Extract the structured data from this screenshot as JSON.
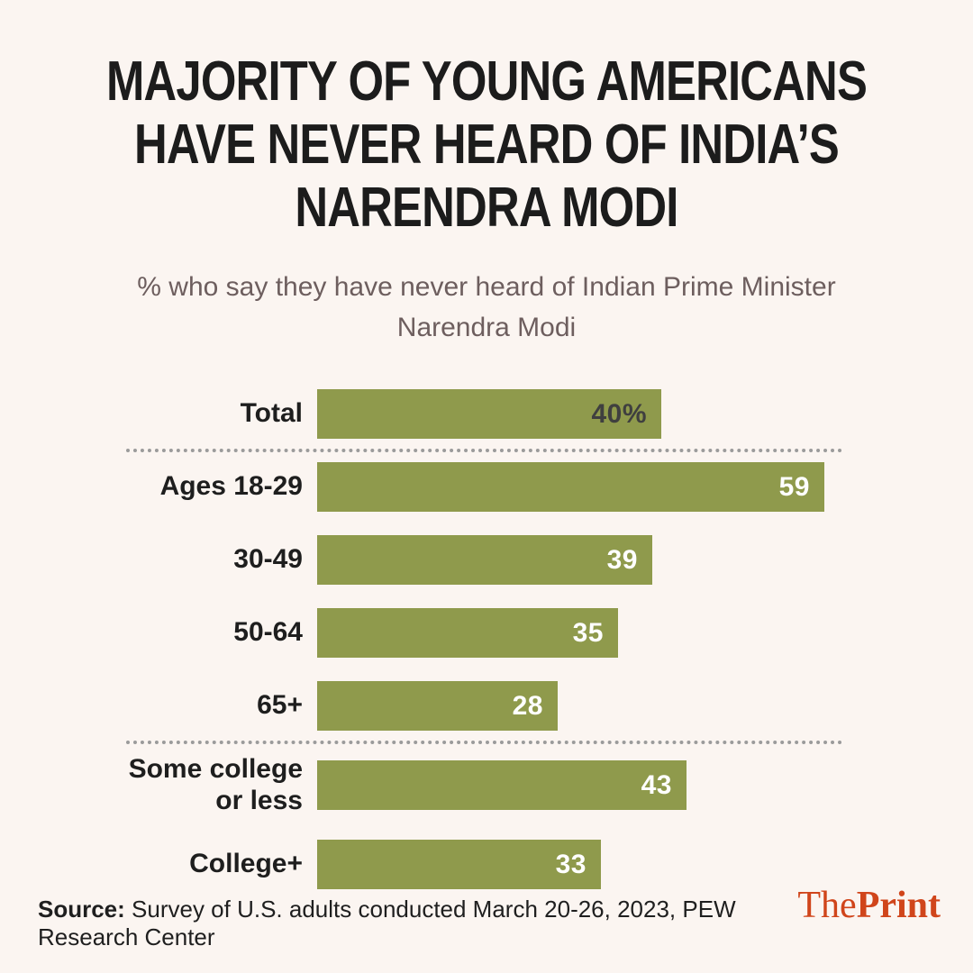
{
  "page": {
    "background": "#fbf5f1"
  },
  "chart_data": {
    "type": "bar",
    "orientation": "horizontal",
    "title": "MAJORITY OF YOUNG AMERICANS\nHAVE NEVER HEARD OF INDIA’S\nNARENDRA MODI",
    "subtitle": "% who say they have never heard of Indian Prime Minister\nNarendra Modi",
    "categories": [
      "Total",
      "Ages 18-29",
      "30-49",
      "50-64",
      "65+",
      "Some college\nor less",
      "College+"
    ],
    "values": [
      40,
      59,
      39,
      35,
      28,
      43,
      33
    ],
    "value_labels": [
      "40%",
      "59",
      "39",
      "35",
      "28",
      "43",
      "33"
    ],
    "value_label_colors": [
      "#3f3f3f",
      "#ffffff",
      "#ffffff",
      "#ffffff",
      "#ffffff",
      "#ffffff",
      "#ffffff"
    ],
    "separators_after": [
      0,
      4
    ],
    "bar_color": "#8f9a4c",
    "xlim": [
      0,
      62
    ],
    "grid": false,
    "legend": "none"
  },
  "footer": {
    "source_label": "Source:",
    "source_text": " Survey of U.S. adults conducted March 20-26, 2023, PEW Research Center",
    "logo_the": "The",
    "logo_print": "Print",
    "logo_color": "#d0451b"
  }
}
